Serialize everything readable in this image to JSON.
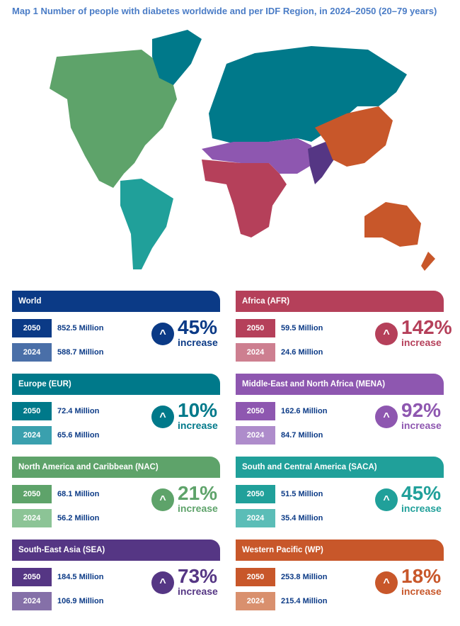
{
  "title": "Map 1 Number of people with diabetes worldwide and per IDF Region, in 2024–2050 (20–79 years)",
  "colors": {
    "world": "#0b3a86",
    "afr": "#b5405a",
    "eur": "#00798a",
    "mena": "#8e57b0",
    "nac": "#5ea36a",
    "saca": "#20a09a",
    "sea": "#553684",
    "wp": "#c8572a"
  },
  "cards": [
    {
      "name": "World",
      "dark": "#0b3a86",
      "light": "#4a6fa8",
      "text": "#0b3a86",
      "y2050": "2050",
      "v2050": "852.5 Million",
      "y2024": "2024",
      "v2024": "588.7 Million",
      "pct": "45%",
      "inc": "increase"
    },
    {
      "name": "Africa (AFR)",
      "dark": "#b5405a",
      "light": "#cd7f90",
      "text": "#0b3a86",
      "y2050": "2050",
      "v2050": "59.5 Million",
      "y2024": "2024",
      "v2024": "24.6 Million",
      "pct": "142%",
      "inc": "increase"
    },
    {
      "name": "Europe (EUR)",
      "dark": "#00798a",
      "light": "#3aa0ae",
      "text": "#0b3a86",
      "y2050": "2050",
      "v2050": "72.4 Million",
      "y2024": "2024",
      "v2024": "65.6 Million",
      "pct": "10%",
      "inc": "increase"
    },
    {
      "name": "Middle-East and North Africa (MENA)",
      "dark": "#8e57b0",
      "light": "#ae8ccb",
      "text": "#0b3a86",
      "y2050": "2050",
      "v2050": "162.6 Million",
      "y2024": "2024",
      "v2024": "84.7 Million",
      "pct": "92%",
      "inc": "increase"
    },
    {
      "name": "North America and Caribbean (NAC)",
      "dark": "#5ea36a",
      "light": "#8cc496",
      "text": "#0b3a86",
      "y2050": "2050",
      "v2050": "68.1 Million",
      "y2024": "2024",
      "v2024": "56.2 Million",
      "pct": "21%",
      "inc": "increase"
    },
    {
      "name": "South and Central America (SACA)",
      "dark": "#20a09a",
      "light": "#5bbdb7",
      "text": "#0b3a86",
      "y2050": "2050",
      "v2050": "51.5 Million",
      "y2024": "2024",
      "v2024": "35.4 Million",
      "pct": "45%",
      "inc": "increase"
    },
    {
      "name": "South-East Asia (SEA)",
      "dark": "#553684",
      "light": "#8570a8",
      "text": "#0b3a86",
      "y2050": "2050",
      "v2050": "184.5 Million",
      "y2024": "2024",
      "v2024": "106.9 Million",
      "pct": "73%",
      "inc": "increase"
    },
    {
      "name": "Western Pacific (WP)",
      "dark": "#c8572a",
      "light": "#d9906e",
      "text": "#0b3a86",
      "y2050": "2050",
      "v2050": "253.8 Million",
      "y2024": "2024",
      "v2024": "215.4 Million",
      "pct": "18%",
      "inc": "increase"
    }
  ]
}
